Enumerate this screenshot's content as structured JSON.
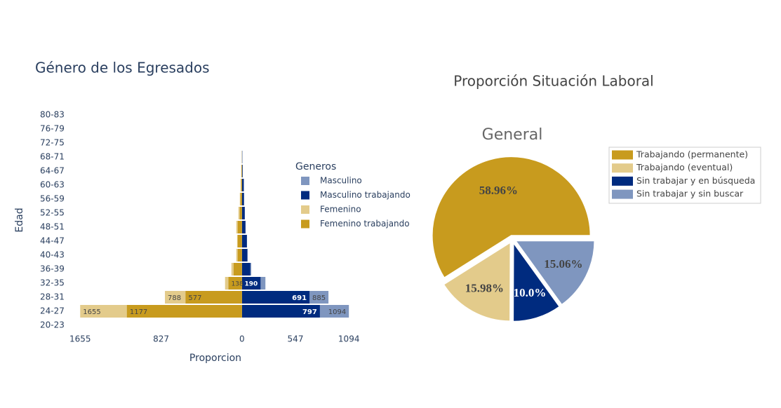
{
  "chart_data": [
    {
      "type": "bar",
      "title": "Género de los Egresados",
      "xlabel": "Proporcion",
      "ylabel": "Edad",
      "legend_title": "Generos",
      "categories": [
        "20-23",
        "24-27",
        "28-31",
        "32-35",
        "36-39",
        "40-43",
        "44-47",
        "48-51",
        "52-55",
        "56-59",
        "60-63",
        "64-67",
        "68-71",
        "72-75",
        "76-79",
        "80-83"
      ],
      "series": [
        {
          "name": "Masculino",
          "color": "#7f96bf",
          "values": [
            0,
            1094,
            885,
            240,
            95,
            58,
            52,
            38,
            30,
            22,
            20,
            8,
            4,
            0,
            0,
            0
          ],
          "value_labels": [
            null,
            "1094",
            "885",
            null,
            null,
            null,
            null,
            null,
            null,
            null,
            null,
            null,
            null,
            null,
            null,
            null
          ]
        },
        {
          "name": "Masculino trabajando",
          "color": "#002b7f",
          "values": [
            0,
            797,
            691,
            190,
            85,
            55,
            50,
            35,
            28,
            20,
            18,
            6,
            3,
            0,
            0,
            0
          ],
          "value_labels": [
            null,
            "797",
            "691",
            "190",
            null,
            null,
            null,
            null,
            null,
            null,
            null,
            null,
            null,
            null,
            null,
            null
          ]
        },
        {
          "name": "Femenino",
          "color": "#e3cb8b",
          "values": [
            0,
            -1655,
            -788,
            -173,
            -108,
            -58,
            -50,
            -58,
            -36,
            -22,
            -14,
            -7,
            -2,
            0,
            0,
            0
          ],
          "value_labels": [
            null,
            "1655",
            "788",
            null,
            null,
            null,
            null,
            null,
            null,
            null,
            null,
            null,
            null,
            null,
            null,
            null
          ]
        },
        {
          "name": "Femenino trabajando",
          "color": "#c89b1e",
          "values": [
            0,
            -1177,
            -577,
            -138,
            -85,
            -43,
            -43,
            -43,
            -22,
            -14,
            -7,
            -5,
            -1,
            0,
            0,
            0
          ],
          "value_labels": [
            null,
            "1177",
            "577",
            "138",
            null,
            null,
            null,
            null,
            null,
            null,
            null,
            null,
            null,
            null,
            null,
            null
          ]
        }
      ],
      "xlim": [
        -1700,
        1150
      ],
      "xticks": [
        {
          "value": -1655,
          "label": "1655"
        },
        {
          "value": -827,
          "label": "827"
        },
        0,
        547,
        1094
      ]
    },
    {
      "type": "pie",
      "title": "Proporción Situación Laboral",
      "subtitle": "General",
      "categories": [
        "Trabajando (permanente)",
        "Trabajando (eventual)",
        "Sin trabajar y en búsqueda",
        "Sin trabajar y sin buscar"
      ],
      "values": [
        58.96,
        15.98,
        10.0,
        15.06
      ],
      "value_labels": [
        "58.96%",
        "15.98%",
        "10.0%",
        "15.06%"
      ],
      "colors": [
        "#c89b1e",
        "#e3cb8b",
        "#002b7f",
        "#7f96bf"
      ]
    }
  ]
}
